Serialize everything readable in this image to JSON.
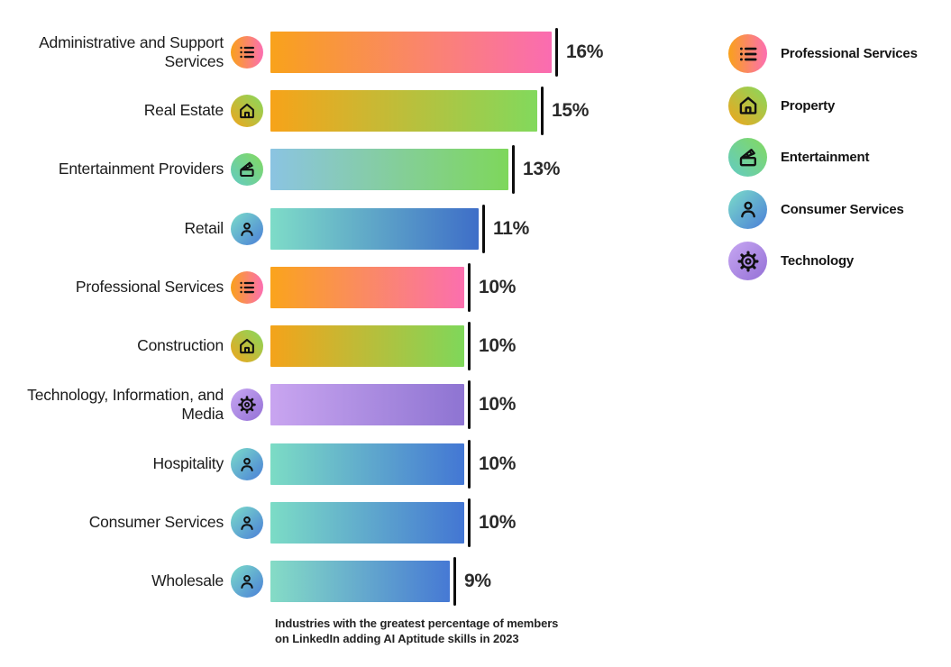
{
  "chart_data": {
    "type": "bar",
    "orientation": "horizontal",
    "value_unit": "%",
    "x_max": 16,
    "categories": [
      "Administrative and Support Services",
      "Real Estate",
      "Entertainment Providers",
      "Retail",
      "Professional Services",
      "Construction",
      "Technology, Information, and Media",
      "Hospitality",
      "Consumer Services",
      "Wholesale"
    ],
    "values": [
      16,
      15,
      13,
      11,
      10,
      10,
      10,
      10,
      10,
      9
    ],
    "display_values": [
      "16%",
      "15%",
      "13%",
      "11%",
      "10%",
      "10%",
      "10%",
      "10%",
      "10%",
      "9%"
    ],
    "bars": [
      {
        "label": "Administrative and Support Services",
        "value": 16,
        "display": "16%",
        "icon": "list-icon",
        "bar_colors": [
          "#F9A21B",
          "#FA6CB1"
        ],
        "icon_colors": [
          "#F9A11B",
          "#FC6FB1"
        ],
        "icon_dir": "90deg"
      },
      {
        "label": "Real Estate",
        "value": 15,
        "display": "15%",
        "icon": "house-icon",
        "bar_colors": [
          "#F7A319",
          "#82D95C"
        ],
        "icon_colors": [
          "#F0A51C",
          "#86D95E"
        ],
        "icon_dir": "45deg"
      },
      {
        "label": "Entertainment Providers",
        "value": 13,
        "display": "13%",
        "icon": "clapperboard-icon",
        "bar_colors": [
          "#8BC4E2",
          "#7ED75B"
        ],
        "icon_colors": [
          "#62CBC4",
          "#83D95F"
        ],
        "icon_dir": "45deg"
      },
      {
        "label": "Retail",
        "value": 11,
        "display": "11%",
        "icon": "person-icon",
        "bar_colors": [
          "#7EDCC8",
          "#3E6EC8"
        ],
        "icon_colors": [
          "#7BDCC9",
          "#4B7FD8"
        ],
        "icon_dir": "135deg"
      },
      {
        "label": "Professional Services",
        "value": 10,
        "display": "10%",
        "icon": "list-icon",
        "bar_colors": [
          "#FAA41C",
          "#FB6FAE"
        ],
        "icon_colors": [
          "#F9A11B",
          "#FC6FB1"
        ],
        "icon_dir": "90deg"
      },
      {
        "label": "Construction",
        "value": 10,
        "display": "10%",
        "icon": "house-icon",
        "bar_colors": [
          "#F4A31A",
          "#7FD75A"
        ],
        "icon_colors": [
          "#F0A51C",
          "#86D95E"
        ],
        "icon_dir": "45deg"
      },
      {
        "label": "Technology, Information, and Media",
        "value": 10,
        "display": "10%",
        "icon": "gear-icon",
        "bar_colors": [
          "#C9A5F0",
          "#8E74D2"
        ],
        "icon_colors": [
          "#C7A7F2",
          "#9470D6"
        ],
        "icon_dir": "135deg"
      },
      {
        "label": "Hospitality",
        "value": 10,
        "display": "10%",
        "icon": "person-icon",
        "bar_colors": [
          "#7CDCC5",
          "#4377D4"
        ],
        "icon_colors": [
          "#7BDCC9",
          "#4B7FD8"
        ],
        "icon_dir": "135deg"
      },
      {
        "label": "Consumer Services",
        "value": 10,
        "display": "10%",
        "icon": "person-icon",
        "bar_colors": [
          "#7CDCC6",
          "#4376D3"
        ],
        "icon_colors": [
          "#7BDCC9",
          "#4B7FD8"
        ],
        "icon_dir": "135deg"
      },
      {
        "label": "Wholesale",
        "value": 9,
        "display": "9%",
        "icon": "person-icon",
        "bar_colors": [
          "#85DCC6",
          "#4679D4"
        ],
        "icon_colors": [
          "#7BDCC9",
          "#4B7FD8"
        ],
        "icon_dir": "135deg"
      }
    ],
    "legend": {
      "items": [
        {
          "label": "Professional Services",
          "icon": "list-icon",
          "colors": [
            "#F9A11B",
            "#FC6FB1"
          ],
          "dir": "90deg"
        },
        {
          "label": "Property",
          "icon": "house-icon",
          "colors": [
            "#F0A51C",
            "#86D95E"
          ],
          "dir": "45deg"
        },
        {
          "label": "Entertainment",
          "icon": "clapperboard-icon",
          "colors": [
            "#62CBC4",
            "#83D95F"
          ],
          "dir": "45deg"
        },
        {
          "label": "Consumer Services",
          "icon": "person-icon",
          "colors": [
            "#7BDCC9",
            "#4B7FD8"
          ],
          "dir": "135deg"
        },
        {
          "label": "Technology",
          "icon": "gear-icon",
          "colors": [
            "#C7A7F2",
            "#9470D6"
          ],
          "dir": "135deg"
        }
      ]
    },
    "caption": {
      "line1": "Industries with the greatest percentage of members",
      "line2": "on LinkedIn adding AI Aptitude skills in 2023"
    },
    "ink_color": "#111111",
    "text_color": "#1c1c1c"
  }
}
